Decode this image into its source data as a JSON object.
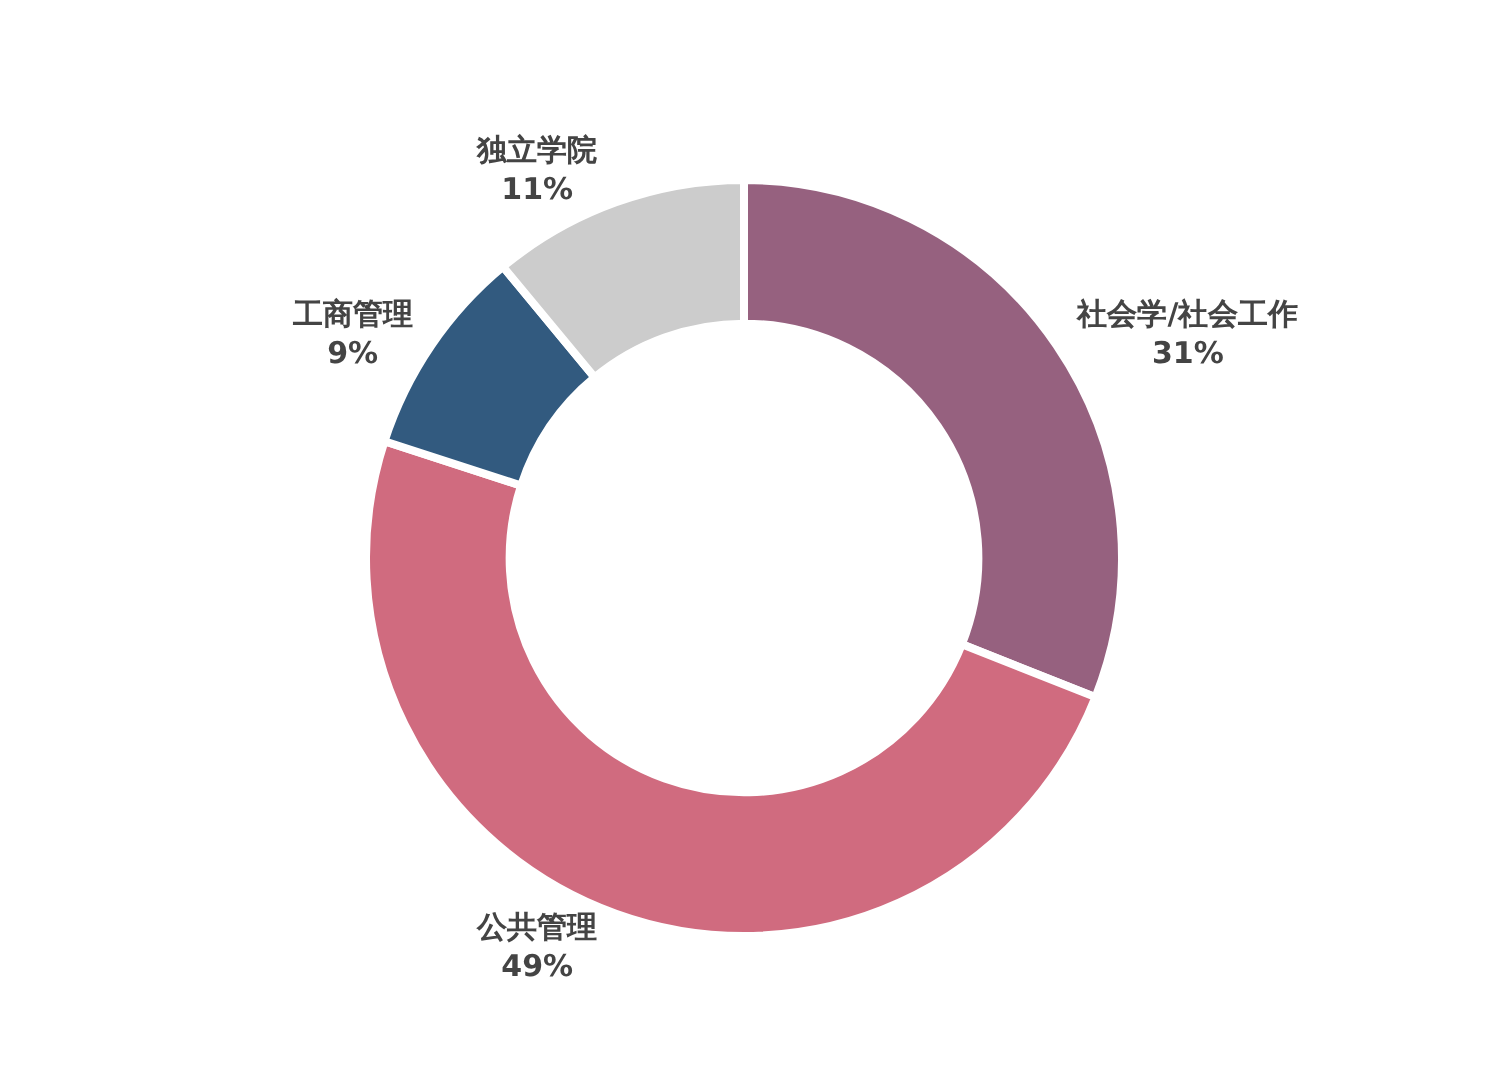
{
  "chart_data": {
    "type": "donut",
    "categories": [
      "社会学/社会工作",
      "公共管理",
      "工商管理",
      "独立学院"
    ],
    "values": [
      31,
      49,
      9,
      11
    ],
    "value_labels": [
      "31%",
      "49%",
      "9%",
      "11%"
    ],
    "colors": [
      "#96617f",
      "#d06b7f",
      "#325a7f",
      "#cccccc"
    ],
    "legend": false
  }
}
